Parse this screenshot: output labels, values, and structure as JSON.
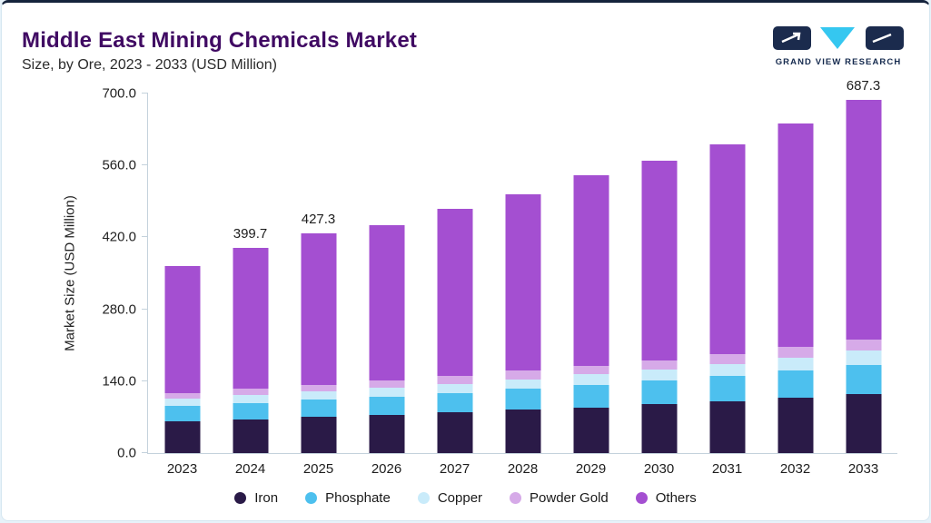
{
  "header": {
    "title": "Middle East Mining Chemicals Market",
    "subtitle": "Size, by Ore, 2023 - 2033 (USD Million)",
    "logo_text": "GRAND VIEW RESEARCH"
  },
  "axes": {
    "y_title": "Market Size (USD Million)"
  },
  "chart_data": {
    "type": "bar",
    "stacked": true,
    "title": "Middle East Mining Chemicals Market Size, by Ore, 2023 - 2033 (USD Million)",
    "xlabel": "",
    "ylabel": "Market Size (USD Million)",
    "ylim": [
      0,
      700
    ],
    "ytick_labels": [
      "0.0",
      "140.0",
      "280.0",
      "420.0",
      "560.0",
      "700.0"
    ],
    "grid": false,
    "legend_position": "bottom",
    "categories": [
      "2023",
      "2024",
      "2025",
      "2026",
      "2027",
      "2028",
      "2029",
      "2030",
      "2031",
      "2032",
      "2033"
    ],
    "series": [
      {
        "name": "Iron",
        "color": "#2A1A47",
        "values": [
          62,
          66,
          70,
          74,
          79,
          84,
          89,
          95,
          101,
          108,
          115
        ]
      },
      {
        "name": "Phosphate",
        "color": "#4DC0EE",
        "values": [
          30,
          32,
          34,
          36,
          38,
          41,
          43,
          46,
          49,
          52,
          56
        ]
      },
      {
        "name": "Copper",
        "color": "#C9EBFA",
        "values": [
          14,
          15,
          16,
          17,
          18,
          19,
          21,
          22,
          24,
          26,
          28
        ]
      },
      {
        "name": "Powder Gold",
        "color": "#D6AAE8",
        "values": [
          11,
          12,
          13,
          14,
          15,
          16,
          17,
          18,
          19,
          21,
          22
        ]
      },
      {
        "name": "Others",
        "color": "#A44FD1",
        "values": [
          248,
          274.7,
          294.3,
          302,
          326,
          343,
          371,
          388,
          408,
          435,
          466.3
        ]
      }
    ],
    "totals": [
      365,
      399.7,
      427.3,
      443,
      476,
      503,
      541,
      569,
      601,
      642,
      687.3
    ],
    "bar_labels": {
      "2024": "399.7",
      "2025": "427.3",
      "2033": "687.3"
    },
    "annotations": [
      "399.7",
      "427.3",
      "687.3"
    ]
  },
  "logo_colors": {
    "navy": "#1B2B4D",
    "cyan": "#35C7F0"
  }
}
